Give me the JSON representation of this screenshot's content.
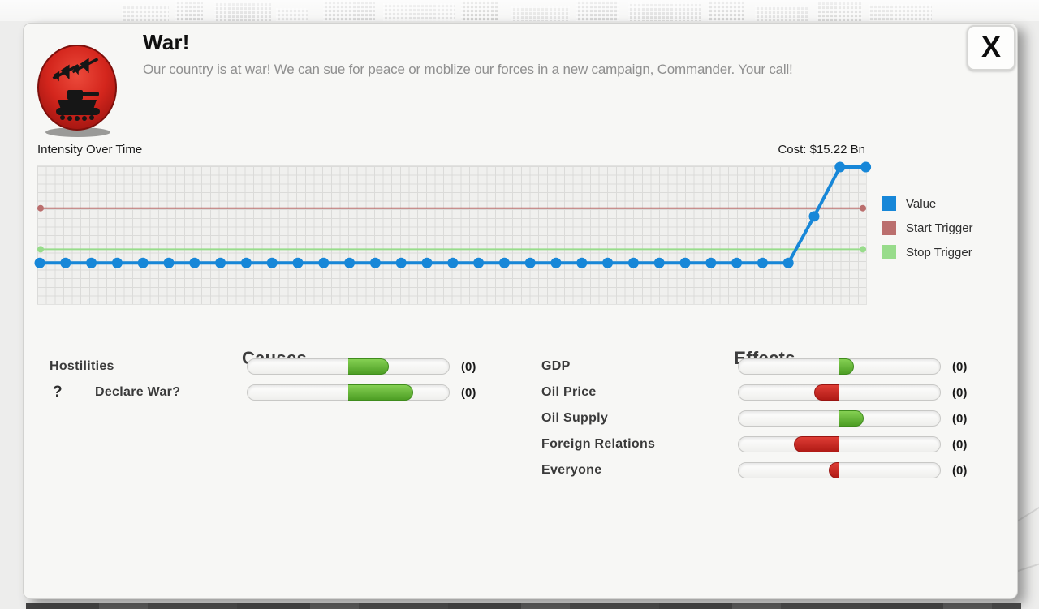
{
  "dialog": {
    "title": "War!",
    "description": "Our country is at war! We can sue for peace or moblize our forces in a new campaign, Commander. Your call!",
    "close_label": "X",
    "icon": "war-tank-and-planes-badge"
  },
  "chart": {
    "title": "Intensity Over Time",
    "cost_label": "Cost: $15.22 Bn"
  },
  "chart_data": {
    "type": "line",
    "title": "Intensity Over Time",
    "x": [
      0,
      1,
      2,
      3,
      4,
      5,
      6,
      7,
      8,
      9,
      10,
      11,
      12,
      13,
      14,
      15,
      16,
      17,
      18,
      19,
      20,
      21,
      22,
      23,
      24,
      25,
      26,
      27,
      28,
      29,
      30,
      31,
      32
    ],
    "series": [
      {
        "name": "Value",
        "color": "#1787d8",
        "values": [
          0.3,
          0.3,
          0.3,
          0.3,
          0.3,
          0.3,
          0.3,
          0.3,
          0.3,
          0.3,
          0.3,
          0.3,
          0.3,
          0.3,
          0.3,
          0.3,
          0.3,
          0.3,
          0.3,
          0.3,
          0.3,
          0.3,
          0.3,
          0.3,
          0.3,
          0.3,
          0.3,
          0.3,
          0.3,
          0.3,
          0.64,
          1.0,
          1.0
        ]
      },
      {
        "name": "Start Trigger",
        "color": "#bb6f6e",
        "constant_value": 0.7
      },
      {
        "name": "Stop Trigger",
        "color": "#98dc8b",
        "constant_value": 0.4
      }
    ],
    "ylim": [
      0,
      1
    ],
    "xlabel": "",
    "ylabel": "",
    "grid": true,
    "legend_position": "right",
    "annotations": [
      "Cost: $15.22 Bn"
    ]
  },
  "causes": {
    "heading": "Causes",
    "rows": [
      {
        "label": "Hostilities",
        "has_help": false,
        "value": 0.4,
        "display": "(0)"
      },
      {
        "label": "Declare War?",
        "has_help": true,
        "help_glyph": "?",
        "value": 0.64,
        "display": "(0)"
      }
    ]
  },
  "effects": {
    "heading": "Effects",
    "rows": [
      {
        "label": "GDP",
        "has_help": false,
        "value": 0.14,
        "display": "(0)"
      },
      {
        "label": "Oil Price",
        "has_help": false,
        "value": -0.25,
        "display": "(0)"
      },
      {
        "label": "Oil Supply",
        "has_help": false,
        "value": 0.24,
        "display": "(0)"
      },
      {
        "label": "Foreign Relations",
        "has_help": false,
        "value": -0.45,
        "display": "(0)"
      },
      {
        "label": "Everyone",
        "has_help": false,
        "value": -0.1,
        "display": "(0)"
      }
    ]
  },
  "colors": {
    "value_line": "#1787d8",
    "start_trigger": "#bb6f6e",
    "stop_trigger": "#98dc8b",
    "positive_fill": "#54a62b",
    "negative_fill": "#c41e1a",
    "badge_red": "#cf221b"
  }
}
